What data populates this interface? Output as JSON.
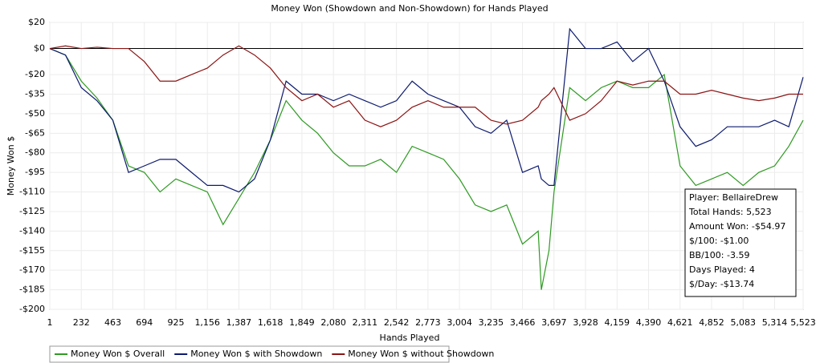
{
  "chart_data": {
    "type": "line",
    "title": "Money Won (Showdown and Non-Showdown) for Hands Played",
    "x_label": "Hands Played",
    "y_label": "Money Won $",
    "x": [
      1,
      116,
      232,
      347,
      463,
      578,
      694,
      809,
      925,
      1040,
      1156,
      1271,
      1387,
      1502,
      1618,
      1733,
      1849,
      1964,
      2080,
      2195,
      2311,
      2426,
      2542,
      2657,
      2773,
      2888,
      3004,
      3119,
      3235,
      3350,
      3466,
      3581,
      3604,
      3660,
      3697,
      3812,
      3928,
      4043,
      4159,
      4274,
      4390,
      4505,
      4621,
      4736,
      4852,
      4967,
      5083,
      5198,
      5314,
      5418,
      5523
    ],
    "series": [
      {
        "name": "Money Won $ Overall",
        "color": "#2e9a22",
        "values": [
          0,
          -5,
          -25,
          -38,
          -55,
          -90,
          -95,
          -110,
          -100,
          -105,
          -110,
          -135,
          -115,
          -95,
          -70,
          -40,
          -55,
          -65,
          -80,
          -90,
          -90,
          -85,
          -95,
          -75,
          -80,
          -85,
          -100,
          -120,
          -125,
          -120,
          -150,
          -140,
          -185,
          -155,
          -110,
          -30,
          -40,
          -30,
          -25,
          -30,
          -30,
          -20,
          -90,
          -105,
          -100,
          -95,
          -105,
          -95,
          -90,
          -75,
          -55
        ]
      },
      {
        "name": "Money Won $ with Showdown",
        "color": "#0c1a6e",
        "values": [
          0,
          -5,
          -30,
          -40,
          -55,
          -95,
          -90,
          -85,
          -85,
          -95,
          -105,
          -105,
          -110,
          -100,
          -70,
          -25,
          -35,
          -35,
          -40,
          -35,
          -40,
          -45,
          -40,
          -25,
          -35,
          -40,
          -45,
          -60,
          -65,
          -55,
          -95,
          -90,
          -100,
          -105,
          -105,
          15,
          0,
          0,
          5,
          -10,
          0,
          -25,
          -60,
          -75,
          -70,
          -60,
          -60,
          -60,
          -55,
          -60,
          -22
        ]
      },
      {
        "name": "Money Won $ without Showdown",
        "color": "#8b1414",
        "values": [
          0,
          2,
          0,
          1,
          0,
          0,
          -10,
          -25,
          -25,
          -20,
          -15,
          -5,
          2,
          -5,
          -15,
          -30,
          -40,
          -35,
          -45,
          -40,
          -55,
          -60,
          -55,
          -45,
          -40,
          -45,
          -45,
          -45,
          -55,
          -58,
          -55,
          -45,
          -40,
          -35,
          -30,
          -55,
          -50,
          -40,
          -25,
          -28,
          -25,
          -25,
          -35,
          -35,
          -32,
          -35,
          -38,
          -40,
          -38,
          -35,
          -35
        ]
      }
    ],
    "xlim": [
      1,
      5523
    ],
    "xticks": [
      1,
      232,
      463,
      694,
      925,
      {
        "value": 1156,
        "label": "1,156"
      },
      {
        "value": 1387,
        "label": "1,387"
      },
      {
        "value": 1618,
        "label": "1,618"
      },
      {
        "value": 1849,
        "label": "1,849"
      },
      {
        "value": 2080,
        "label": "2,080"
      },
      {
        "value": 2311,
        "label": "2,311"
      },
      {
        "value": 2542,
        "label": "2,542"
      },
      {
        "value": 2773,
        "label": "2,773"
      },
      {
        "value": 3004,
        "label": "3,004"
      },
      {
        "value": 3235,
        "label": "3,235"
      },
      {
        "value": 3466,
        "label": "3,466"
      },
      {
        "value": 3697,
        "label": "3,697"
      },
      {
        "value": 3928,
        "label": "3,928"
      },
      {
        "value": 4159,
        "label": "4,159"
      },
      {
        "value": 4390,
        "label": "4,390"
      },
      {
        "value": 4621,
        "label": "4,621"
      },
      {
        "value": 4852,
        "label": "4,852"
      },
      {
        "value": 5083,
        "label": "5,083"
      },
      {
        "value": 5314,
        "label": "5,314"
      },
      {
        "value": 5523,
        "label": "5,523"
      }
    ],
    "ylim": [
      -200,
      20
    ],
    "yticks": [
      {
        "value": 20,
        "label": "$20"
      },
      {
        "value": 0,
        "label": "$0"
      },
      {
        "value": -20,
        "label": "-$20"
      },
      {
        "value": -35,
        "label": "-$35"
      },
      {
        "value": -50,
        "label": "-$50"
      },
      {
        "value": -65,
        "label": "-$65"
      },
      {
        "value": -80,
        "label": "-$80"
      },
      {
        "value": -95,
        "label": "-$95"
      },
      {
        "value": -110,
        "label": "-$110"
      },
      {
        "value": -125,
        "label": "-$125"
      },
      {
        "value": -140,
        "label": "-$140"
      },
      {
        "value": -155,
        "label": "-$155"
      },
      {
        "value": -170,
        "label": "-$170"
      },
      {
        "value": -185,
        "label": "-$185"
      },
      {
        "value": -200,
        "label": "-$200"
      }
    ],
    "grid": true,
    "info_box": [
      "Player: BellaireDrew",
      "Total Hands: 5,523",
      "Amount Won: -$54.97",
      "$/100: -$1.00",
      "BB/100: -3.59",
      "Days Played: 4",
      "$/Day: -$13.74"
    ]
  }
}
